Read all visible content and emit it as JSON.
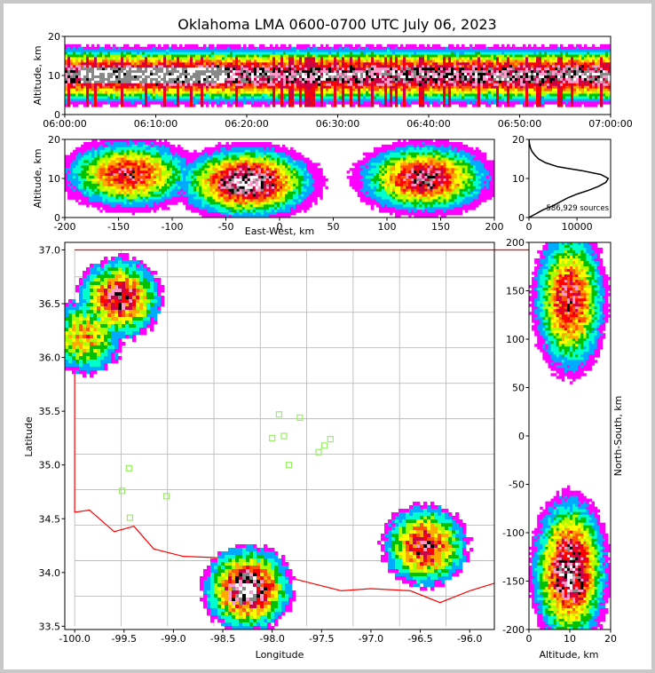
{
  "chart_data": {
    "type": "heatmap",
    "title": "Oklahoma LMA 0600-0700 UTC July 06, 2023",
    "colormap": [
      "#9400ff",
      "#ff00ff",
      "#00aaff",
      "#00ffcc",
      "#00c000",
      "#aaff00",
      "#ffff00",
      "#ffaa00",
      "#ff5500",
      "#ff0000",
      "#cc0044",
      "#ff99cc",
      "#000000",
      "#888888",
      "#ffffff"
    ],
    "panels": [
      {
        "name": "time-height",
        "ylabel": "Altitude, km",
        "xlabel": "",
        "ylim": [
          0,
          20
        ],
        "yticks": [
          0,
          10,
          20
        ],
        "xticks": [
          "06:00:00",
          "06:10:00",
          "06:20:00",
          "06:30:00",
          "06:40:00",
          "06:50:00",
          "07:00:00"
        ],
        "xlim_min": [
          0,
          60
        ],
        "core_altitude_km": 10
      },
      {
        "name": "east-west",
        "ylabel": "Altitude, km",
        "xlabel": "East-West, km",
        "xlim": [
          -200,
          200
        ],
        "ylim": [
          0,
          20
        ],
        "xticks": [
          -200,
          -150,
          -100,
          -50,
          0,
          50,
          100,
          150,
          200
        ],
        "yticks": [
          0,
          10,
          20
        ],
        "cells": [
          {
            "x": -140,
            "z": 11,
            "peak": 0.75
          },
          {
            "x": -30,
            "z": 9,
            "peak": 1.0
          },
          {
            "x": 135,
            "z": 10,
            "peak": 0.85
          }
        ]
      },
      {
        "name": "altitude-histogram",
        "ylim": [
          0,
          20
        ],
        "xlim": [
          0,
          17000
        ],
        "xticks": [
          0,
          10000
        ],
        "yticks": [
          0,
          10,
          20
        ],
        "annotation": "586,929 sources",
        "profile_altitude_km": [
          0,
          1,
          2,
          3,
          4,
          5,
          6,
          7,
          8,
          9,
          10,
          11,
          12,
          13,
          14,
          15,
          16,
          17,
          18,
          19,
          20
        ],
        "profile_counts": [
          0,
          1500,
          3000,
          5000,
          6500,
          8000,
          10000,
          12500,
          14500,
          16000,
          16500,
          15000,
          11000,
          6000,
          3500,
          2000,
          1200,
          600,
          250,
          100,
          0
        ]
      },
      {
        "name": "plan-view",
        "ylabel": "Latitude",
        "xlabel": "Longitude",
        "xlim": [
          -100.1,
          -95.75
        ],
        "ylim": [
          33.47,
          37.07
        ],
        "xticks": [
          -100.0,
          -99.5,
          -99.0,
          -98.5,
          -98.0,
          -97.5,
          -97.0,
          -96.5,
          -96.0
        ],
        "yticks": [
          33.5,
          34.0,
          34.5,
          35.0,
          35.5,
          36.0,
          36.5,
          37.0
        ],
        "state_border_color": "#ff0000",
        "county_line_color": "#bbbbbb",
        "station_color": "#99ee66",
        "stations": [
          [
            -97.93,
            35.47
          ],
          [
            -97.72,
            35.44
          ],
          [
            -97.88,
            35.27
          ],
          [
            -98.0,
            35.25
          ],
          [
            -97.47,
            35.18
          ],
          [
            -97.41,
            35.24
          ],
          [
            -97.53,
            35.12
          ],
          [
            -97.83,
            35.0
          ],
          [
            -99.45,
            34.97
          ],
          [
            -99.52,
            34.76
          ],
          [
            -99.07,
            34.71
          ],
          [
            -99.44,
            34.51
          ]
        ],
        "cells": [
          {
            "lon": -99.55,
            "lat": 36.55,
            "peak": 0.8
          },
          {
            "lon": -99.9,
            "lat": 36.2,
            "peak": 0.55
          },
          {
            "lon": -98.25,
            "lat": 33.85,
            "peak": 1.0
          },
          {
            "lon": -96.45,
            "lat": 34.25,
            "peak": 0.8
          }
        ]
      },
      {
        "name": "north-south",
        "ylabel": "North-South, km",
        "xlabel": "Altitude, km",
        "xlim": [
          0,
          20
        ],
        "ylim": [
          -200,
          200
        ],
        "xticks": [
          0,
          10,
          20
        ],
        "yticks": [
          -200,
          -150,
          -100,
          -50,
          0,
          50,
          100,
          150,
          200
        ],
        "cells": [
          {
            "y": 140,
            "z": 10,
            "peak": 0.8
          },
          {
            "y": -140,
            "z": 10,
            "peak": 1.0
          }
        ]
      }
    ]
  }
}
